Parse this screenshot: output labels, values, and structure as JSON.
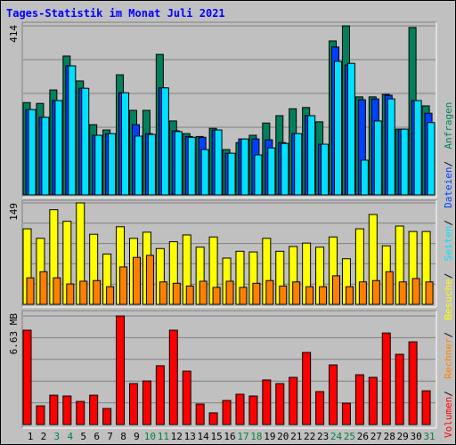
{
  "chart_data": [
    {
      "type": "bar",
      "title": "Tages-Statistik im Monat Juli 2021",
      "ylim": [
        0,
        414
      ],
      "yticks": [
        414
      ],
      "series": [
        {
          "name": "Anfragen",
          "color": "#00805c",
          "values": [
            226,
            224,
            257,
            340,
            279,
            172,
            159,
            294,
            207,
            207,
            344,
            181,
            150,
            143,
            163,
            111,
            128,
            146,
            176,
            194,
            211,
            214,
            179,
            377,
            414,
            240,
            240,
            246,
            161,
            410,
            218
          ]
        },
        {
          "name": "Dateien",
          "color": "#0040ff",
          "values": [
            209,
            190,
            231,
            316,
            261,
            146,
            150,
            250,
            172,
            150,
            262,
            157,
            143,
            141,
            159,
            102,
            137,
            137,
            135,
            128,
            150,
            194,
            124,
            362,
            318,
            233,
            235,
            244,
            161,
            231,
            200
          ]
        },
        {
          "name": "Seiten",
          "color": "#00e0ff",
          "values": [
            209,
            190,
            231,
            316,
            261,
            146,
            150,
            250,
            144,
            148,
            262,
            155,
            141,
            111,
            159,
            102,
            137,
            98,
            115,
            126,
            150,
            194,
            124,
            327,
            322,
            85,
            181,
            235,
            161,
            231,
            177
          ]
        }
      ]
    },
    {
      "type": "bar",
      "ylim": [
        0,
        149
      ],
      "yticks": [
        149
      ],
      "series": [
        {
          "name": "Besuche",
          "color": "#ffff00",
          "values": [
            111,
            97,
            139,
            122,
            149,
            103,
            74,
            114,
            97,
            106,
            82,
            92,
            102,
            84,
            99,
            68,
            78,
            77,
            97,
            78,
            85,
            90,
            84,
            99,
            67,
            111,
            132,
            86,
            115,
            107,
            107
          ]
        },
        {
          "name": "Rechner",
          "color": "#ff8000",
          "values": [
            39,
            48,
            39,
            30,
            34,
            35,
            26,
            55,
            69,
            72,
            33,
            31,
            27,
            34,
            25,
            34,
            25,
            31,
            35,
            27,
            33,
            26,
            26,
            42,
            26,
            33,
            35,
            48,
            33,
            38,
            33
          ]
        }
      ]
    },
    {
      "type": "bar",
      "ylim": [
        0,
        6.63
      ],
      "yticks": [
        {
          "value": 6.63,
          "label": "6.63 MB"
        }
      ],
      "categories": [
        "1",
        "2",
        "3",
        "4",
        "5",
        "6",
        "7",
        "8",
        "9",
        "10",
        "11",
        "12",
        "13",
        "14",
        "15",
        "16",
        "17",
        "18",
        "19",
        "20",
        "21",
        "22",
        "23",
        "24",
        "25",
        "26",
        "27",
        "28",
        "29",
        "30",
        "31"
      ],
      "category_colors": [
        "#000000",
        "#000000",
        "#008040",
        "#008040",
        "#000000",
        "#000000",
        "#000000",
        "#000000",
        "#000000",
        "#008040",
        "#008040",
        "#000000",
        "#000000",
        "#000000",
        "#000000",
        "#000000",
        "#008040",
        "#008040",
        "#000000",
        "#000000",
        "#000000",
        "#000000",
        "#000000",
        "#008040",
        "#008040",
        "#000000",
        "#000000",
        "#000000",
        "#000000",
        "#000000",
        "#008040"
      ],
      "series": [
        {
          "name": "Volumen",
          "color": "#ff0000",
          "values": [
            5.76,
            1.14,
            1.79,
            1.74,
            1.41,
            1.79,
            0.98,
            6.63,
            2.5,
            2.66,
            3.59,
            5.76,
            3.26,
            1.25,
            0.71,
            1.47,
            1.85,
            1.74,
            2.72,
            2.5,
            2.88,
            4.4,
            2.01,
            3.64,
            1.3,
            3.04,
            2.88,
            5.59,
            4.29,
            5.05,
            2.06
          ]
        }
      ]
    }
  ]
}
